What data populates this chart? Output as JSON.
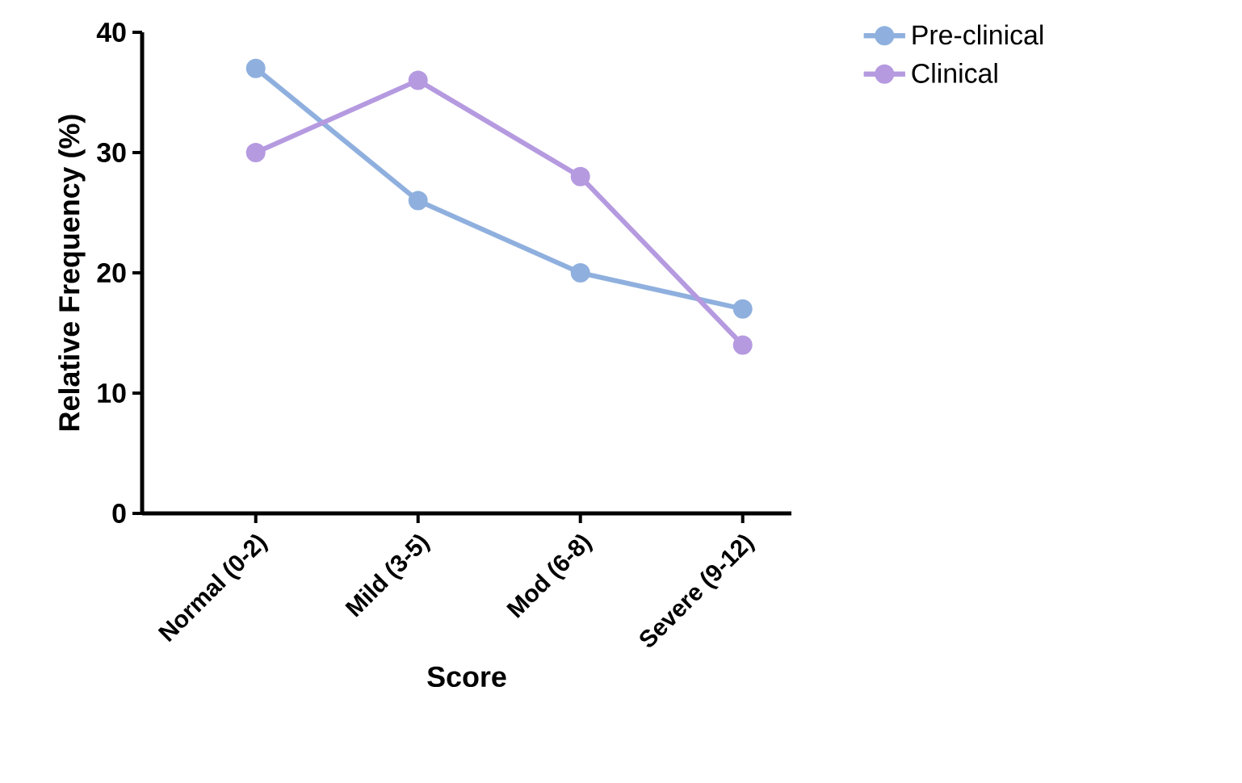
{
  "chart_data": {
    "type": "line",
    "xlabel": "Score",
    "ylabel": "Relative Frequency (%)",
    "categories": [
      "Normal (0-2)",
      "Mild (3-5)",
      "Mod (6-8)",
      "Severe (9-12)"
    ],
    "series": [
      {
        "name": "Pre-clinical",
        "color": "#8fb0de",
        "values": [
          37,
          26,
          20,
          17
        ]
      },
      {
        "name": "Clinical",
        "color": "#b59ae0",
        "values": [
          30,
          36,
          28,
          14
        ]
      }
    ],
    "ylim": [
      0,
      40
    ],
    "yticks": [
      0,
      10,
      20,
      30,
      40
    ],
    "grid": false,
    "legend": "top right",
    "marker": "circle",
    "line_style": "solid"
  }
}
